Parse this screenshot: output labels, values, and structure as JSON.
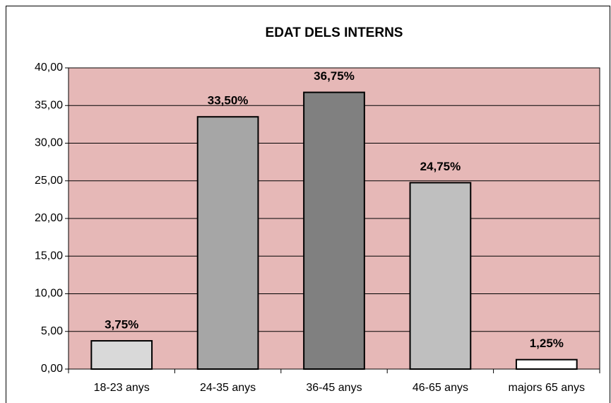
{
  "chart_data": {
    "type": "bar",
    "title": "EDAT DELS INTERNS",
    "categories": [
      "18-23 anys",
      "24-35 anys",
      "36-45 anys",
      "46-65 anys",
      "majors 65 anys"
    ],
    "values": [
      3.75,
      33.5,
      36.75,
      24.75,
      1.25
    ],
    "value_labels": [
      "3,75%",
      "33,50%",
      "36,75%",
      "24,75%",
      "1,25%"
    ],
    "colors": [
      "#d9d9d9",
      "#a6a6a6",
      "#808080",
      "#bfbfbf",
      "#ffffff"
    ],
    "plot_background": "#e6b8b7",
    "ylim": [
      0,
      40
    ],
    "yticks": [
      {
        "value": 0,
        "label": "0,00"
      },
      {
        "value": 5,
        "label": "5,00"
      },
      {
        "value": 10,
        "label": "10,00"
      },
      {
        "value": 15,
        "label": "15,00"
      },
      {
        "value": 20,
        "label": "20,00"
      },
      {
        "value": 25,
        "label": "25,00"
      },
      {
        "value": 30,
        "label": "30,00"
      },
      {
        "value": 35,
        "label": "35,00"
      },
      {
        "value": 40,
        "label": "40,00"
      }
    ],
    "grid": true
  }
}
